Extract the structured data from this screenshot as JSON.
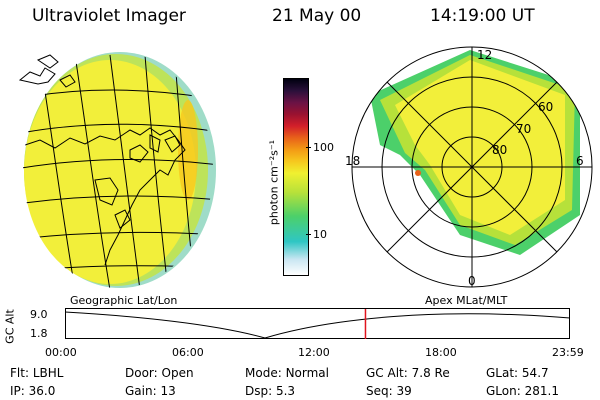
{
  "header": {
    "instrument": "Ultraviolet Imager",
    "date": "21 May 00",
    "time": "14:19:00 UT"
  },
  "colorbar": {
    "label": "photon cm⁻²s⁻¹",
    "ticks": [
      "100",
      "10"
    ],
    "scale": "log",
    "colors": [
      "#ffffff",
      "#c9e6f2",
      "#2fc6c4",
      "#4cd06a",
      "#b6e13a",
      "#f0f030",
      "#f6c81e",
      "#f39a15",
      "#e8611a",
      "#d21f2a",
      "#9a1230",
      "#6a1245",
      "#2a103a",
      "#000010"
    ]
  },
  "geo_map": {
    "caption": "Geographic Lat/Lon"
  },
  "polar_map": {
    "caption": "Apex MLat/MLT",
    "mlt_labels": {
      "top": "12",
      "left": "18",
      "right": "6",
      "bottom": "0"
    },
    "lat_labels": [
      "60",
      "70",
      "80"
    ]
  },
  "altitude_plot": {
    "ylabel": "GC Alt",
    "yticks": [
      "9.0",
      "1.8"
    ],
    "xticks": [
      "00:00",
      "06:00",
      "12:00",
      "18:00",
      "23:59"
    ],
    "current_time_fraction": 0.595
  },
  "info": {
    "row1": [
      {
        "label": "Flt:",
        "value": "LBHL"
      },
      {
        "label": "Door:",
        "value": "Open"
      },
      {
        "label": "Mode:",
        "value": "Normal"
      },
      {
        "label": "GC Alt:",
        "value": "7.8 Re"
      },
      {
        "label": "GLat:",
        "value": "54.7"
      }
    ],
    "row2": [
      {
        "label": "IP:",
        "value": "36.0"
      },
      {
        "label": "Gain:",
        "value": "13"
      },
      {
        "label": "Dsp:",
        "value": "5.3"
      },
      {
        "label": "Seq:",
        "value": "39"
      },
      {
        "label": "GLon:",
        "value": "281.1"
      }
    ]
  }
}
